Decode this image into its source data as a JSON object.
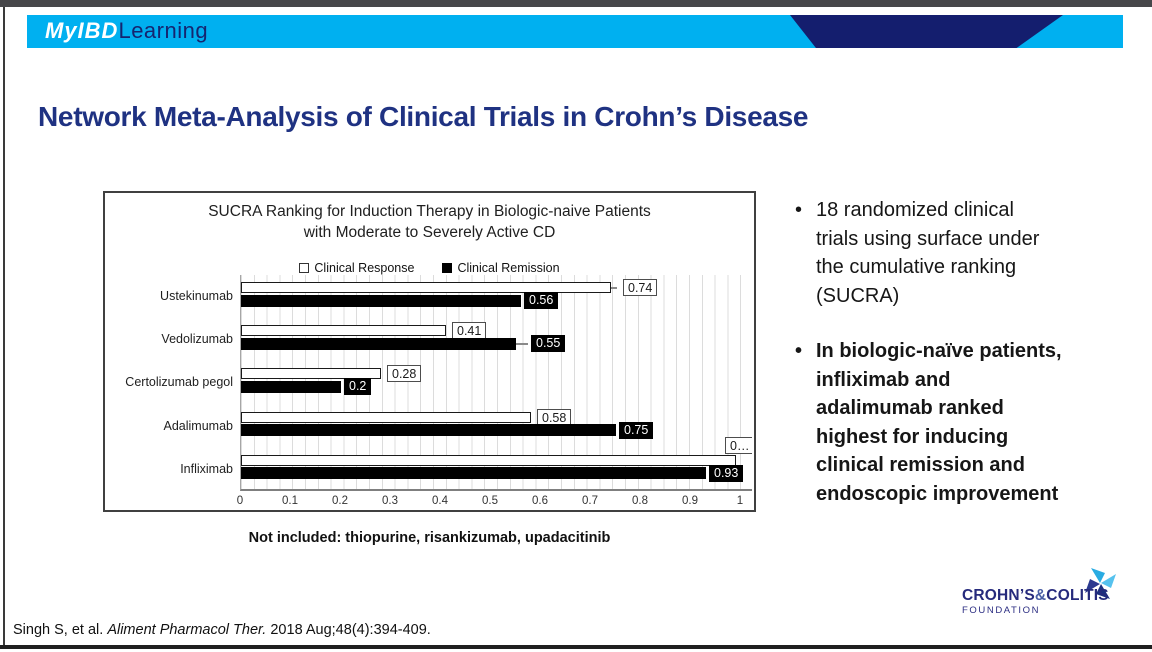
{
  "header": {
    "brand_script": "MyIBD",
    "brand_rest": "Learning"
  },
  "slide": {
    "title": "Network Meta-Analysis of Clinical Trials in Crohn’s Disease"
  },
  "chart_data": {
    "type": "bar",
    "orientation": "horizontal",
    "title_line1": "SUCRA Ranking for Induction Therapy in Biologic-naive Patients",
    "title_line2": "with Moderate to Severely Active CD",
    "categories": [
      "Ustekinumab",
      "Vedolizumab",
      "Certolizumab pegol",
      "Adalimumab",
      "Infliximab"
    ],
    "series": [
      {
        "name": "Clinical Response",
        "fill": "#FFFFFF",
        "values": [
          0.74,
          0.41,
          0.28,
          0.58,
          0.99
        ],
        "labels": [
          "0.74",
          "0.41",
          "0.28",
          "0.58",
          "0…"
        ]
      },
      {
        "name": "Clinical Remission",
        "fill": "#000000",
        "values": [
          0.56,
          0.55,
          0.2,
          0.75,
          0.93
        ],
        "labels": [
          "0.56",
          "0.55",
          "0.2",
          "0.75",
          "0.93"
        ]
      }
    ],
    "xlim": [
      0,
      1
    ],
    "x_ticks": [
      "0",
      "0.1",
      "0.2",
      "0.3",
      "0.4",
      "0.5",
      "0.6",
      "0.7",
      "0.8",
      "0.9",
      "1"
    ],
    "grid": "minor-vertical-0.025",
    "legend_position": "top",
    "leader_lines": [
      {
        "series": 0,
        "category": 0,
        "len": 6
      },
      {
        "series": 1,
        "category": 1,
        "len": 12
      }
    ],
    "clipped_label": {
      "series": 0,
      "category": 4
    }
  },
  "note": "Not included: thiopurine, risankizumab, upadacitinib",
  "bullets": [
    {
      "text": "18 randomized clinical\ntrials using surface under\nthe cumulative ranking\n(SUCRA)",
      "bold": false
    },
    {
      "text": "In biologic-naïve patients,\ninfliximab and\nadalimumab ranked\nhighest for inducing\nclinical remission and\nendoscopic improvement",
      "bold": true
    }
  ],
  "citation": {
    "prefix": "Singh S, et al. ",
    "journal": "Aliment Pharmacol Ther.",
    "suffix": " 2018 Aug;48(4):394-409."
  },
  "footer_logo": {
    "name1": "CROHN’S",
    "amp": "&",
    "name2": "COLITIS",
    "line2": "FOUNDATION"
  },
  "colors": {
    "accent_cyan": "#00B0F0",
    "accent_navy": "#141E6E",
    "title_blue": "#1F3282",
    "logo_navy": "#262A7C"
  }
}
